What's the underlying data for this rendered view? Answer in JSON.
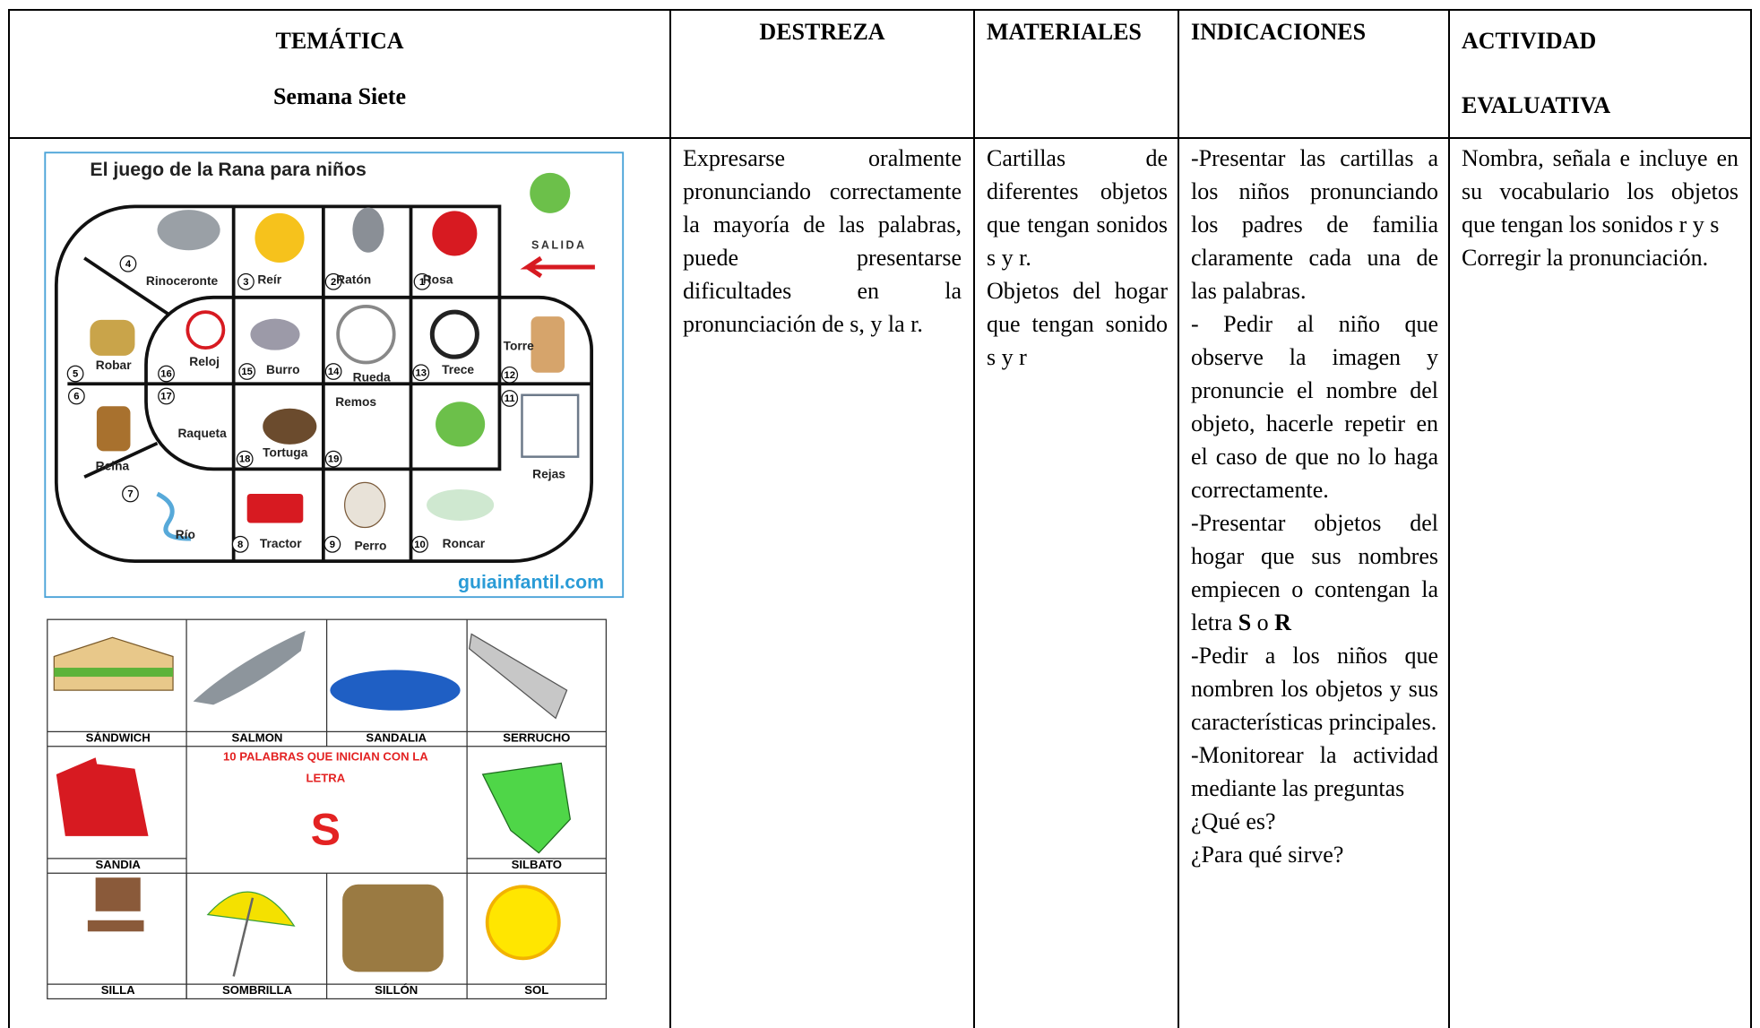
{
  "header": {
    "tematica": [
      "TEMÁTICA",
      "Semana Siete"
    ],
    "destreza": "DESTREZA",
    "materiales": "MATERIALES",
    "indicaciones": "INDICACIONES",
    "actividad": [
      "ACTIVIDAD",
      "EVALUATIVA"
    ]
  },
  "board": {
    "title": "El juego de la Rana para niños",
    "start": "SALIDA",
    "source": "guiainfantil.com",
    "cells": [
      {
        "number": "1",
        "label": "Rosa"
      },
      {
        "number": "2",
        "label": "Ratón"
      },
      {
        "number": "3",
        "label": "Reír"
      },
      {
        "number": "4",
        "label": "Rinoceronte"
      },
      {
        "number": "5",
        "label": "Robar"
      },
      {
        "number": "6",
        "label": "Reina"
      },
      {
        "number": "7",
        "label": "Río"
      },
      {
        "number": "8",
        "label": "Tractor"
      },
      {
        "number": "9",
        "label": "Perro"
      },
      {
        "number": "10",
        "label": "Roncar"
      },
      {
        "number": "11",
        "label": "Rejas"
      },
      {
        "number": "12",
        "label": "Torre"
      },
      {
        "number": "13",
        "label": "Trece"
      },
      {
        "number": "14",
        "label": "Rueda"
      },
      {
        "number": "15",
        "label": "Burro"
      },
      {
        "number": "16",
        "label": "Reloj"
      },
      {
        "number": "17",
        "label": "Raqueta"
      },
      {
        "number": "18",
        "label": "Tortuga"
      },
      {
        "number": "19",
        "label": "Remos"
      }
    ]
  },
  "cards": {
    "words": [
      "SÁNDWICH",
      "SALMON",
      "SANDALIA",
      "SERRUCHO",
      "SANDIA",
      "SILBATO",
      "SILLA",
      "SOMBRILLA",
      "SILLÓN",
      "SOL"
    ],
    "heading": [
      "10 PALABRAS QUE INICIAN CON LA",
      "LETRA"
    ],
    "letter": "S"
  },
  "body": {
    "destreza": "Expresarse oralmente pronunciando correctamente la mayoría de las palabras, puede presentarse dificultades en la pronunciación de s, y la r.",
    "materiales": [
      "Cartillas de diferentes objetos que tengan sonidos s y r.",
      "Objetos del hogar que tengan sonido s y r"
    ],
    "indicaciones": [
      "-Presentar las cartillas a los niños pronunciando los padres de familia claramente cada una de las palabras.",
      "- Pedir al niño que observe la imagen y pronuncie el nombre del objeto, hacerle repetir en el caso de que no lo haga correctamente.",
      [
        "-Presentar objetos del hogar que sus nombres empiecen o contengan la letra ",
        "S",
        " o ",
        "R"
      ],
      "-Pedir a los niños que nombren los objetos y sus características principales.",
      "-Monitorear la actividad mediante las preguntas",
      "¿Qué es?",
      "¿Para qué sirve?"
    ],
    "actividad": [
      "Nombra, señala e incluye en su vocabulario los objetos que tengan los sonidos r y s",
      "Corregir la pronunciación."
    ]
  }
}
